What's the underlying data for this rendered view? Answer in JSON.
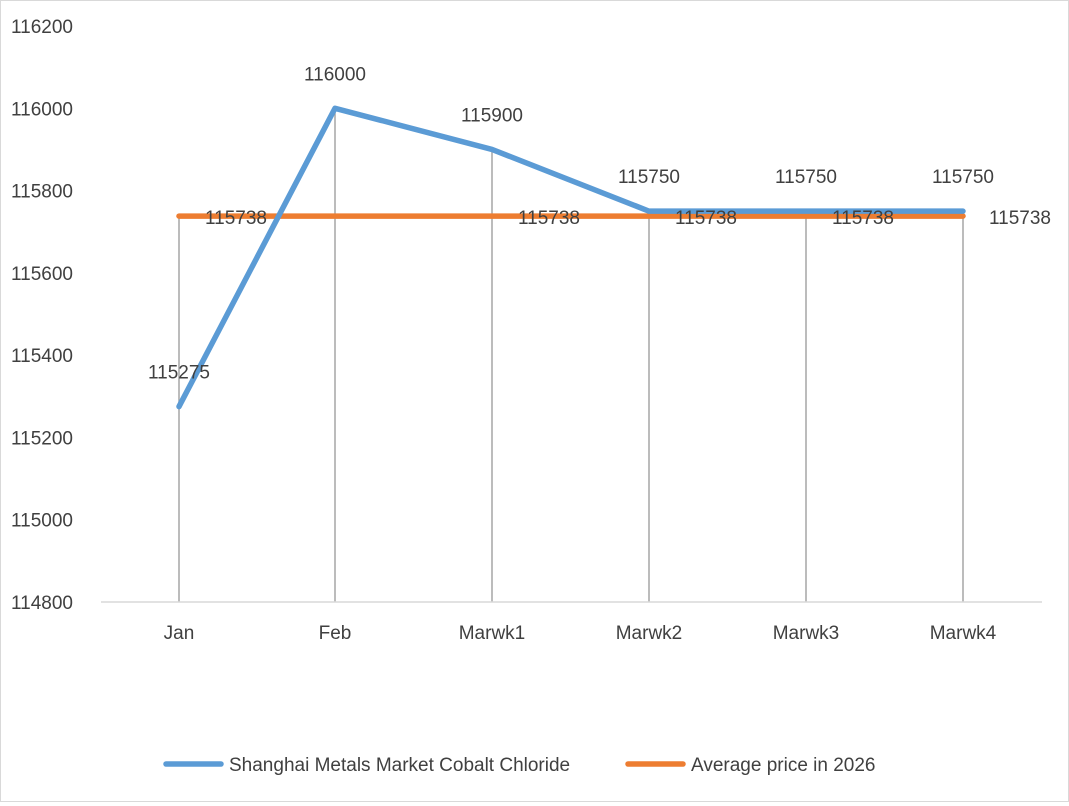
{
  "chart_data": {
    "type": "line",
    "title": "",
    "xlabel": "",
    "ylabel": "",
    "categories": [
      "Jan",
      "Feb",
      "Marwk1",
      "Marwk2",
      "Marwk3",
      "Marwk4"
    ],
    "series": [
      {
        "name": "Shanghai Metals Market Cobalt Chloride",
        "color": "#5b9bd5",
        "values": [
          115275,
          116000,
          115900,
          115750,
          115750,
          115750
        ]
      },
      {
        "name": "Average price in 2026",
        "color": "#ed7d31",
        "values": [
          115738,
          115738,
          115738,
          115738,
          115738,
          115738
        ]
      }
    ],
    "ylim": [
      114800,
      116200
    ],
    "yticks": [
      114800,
      115000,
      115200,
      115400,
      115600,
      115800,
      116000,
      116200
    ],
    "grid": false,
    "drop_lines": true,
    "data_labels": true,
    "legend_position": "bottom"
  },
  "legend": {
    "items": [
      {
        "label": "Shanghai Metals Market Cobalt Chloride",
        "color": "#5b9bd5"
      },
      {
        "label": "Average price in 2026",
        "color": "#ed7d31"
      }
    ]
  }
}
